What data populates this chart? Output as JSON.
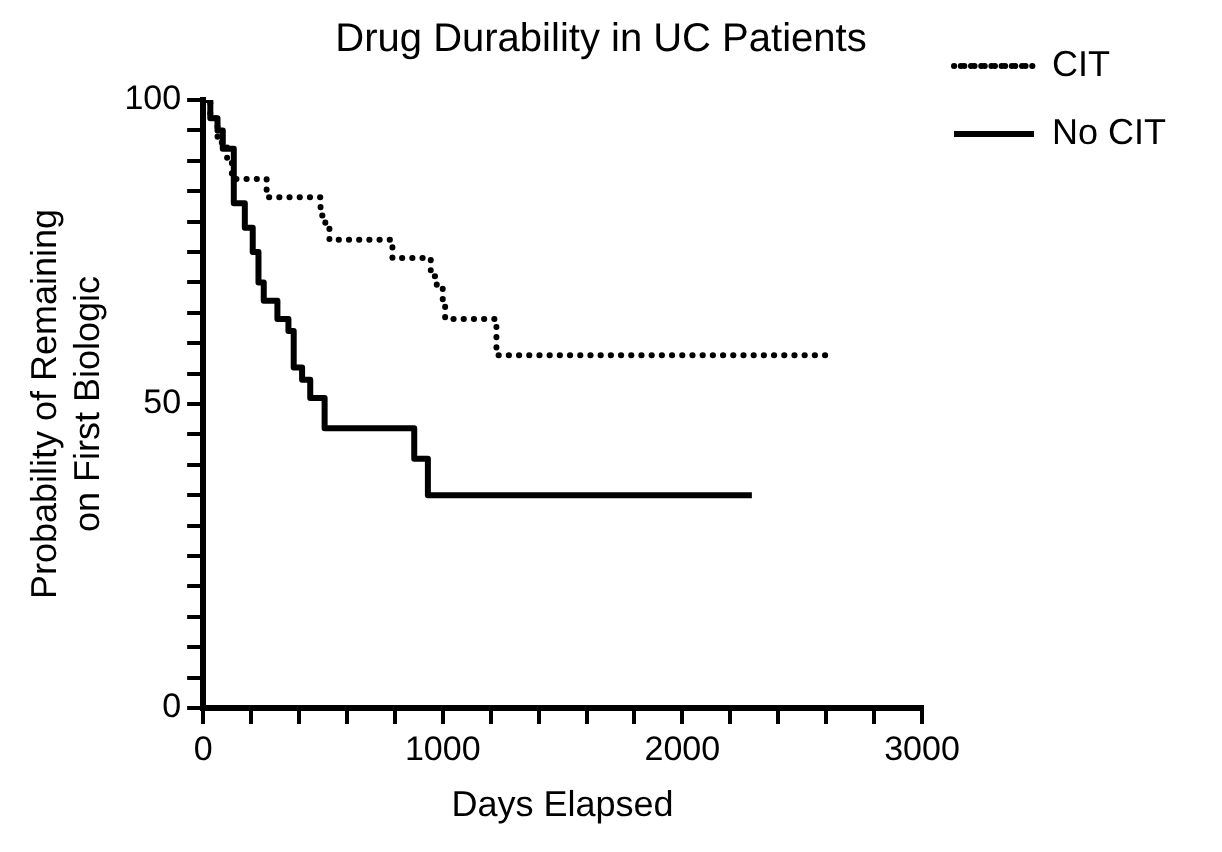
{
  "chart_data": {
    "type": "step",
    "title": "Drug Durability in UC Patients",
    "xlabel": "Days Elapsed",
    "ylabel": "Probability of Remaining\non First Biologic",
    "series": [
      {
        "name": "CIT",
        "color": "#000000",
        "line_style": "dotted",
        "x": [
          0,
          30,
          60,
          100,
          120,
          265,
          490,
          510,
          527,
          790,
          950,
          975,
          1000,
          1010,
          1224,
          2620
        ],
        "values": [
          100,
          97,
          93,
          90,
          87,
          84,
          81,
          79,
          77,
          74,
          71,
          69,
          66,
          64,
          58,
          58
        ]
      },
      {
        "name": "No CIT",
        "color": "#000000",
        "line_style": "solid",
        "x": [
          0,
          30,
          60,
          82,
          128,
          174,
          207,
          231,
          253,
          310,
          356,
          378,
          413,
          447,
          507,
          881,
          938,
          2290
        ],
        "values": [
          100,
          97,
          95,
          92,
          83,
          79,
          75,
          70,
          67,
          64,
          62,
          56,
          54,
          51,
          46,
          41,
          35,
          35
        ]
      }
    ],
    "xlim": [
      0,
      3000
    ],
    "xticks": [
      0,
      {
        "value": 200,
        "label": null
      },
      {
        "value": 400,
        "label": null
      },
      {
        "value": 600,
        "label": null
      },
      {
        "value": 800,
        "label": null
      },
      1000,
      {
        "value": 1200,
        "label": null
      },
      {
        "value": 1400,
        "label": null
      },
      {
        "value": 1600,
        "label": null
      },
      {
        "value": 1800,
        "label": null
      },
      2000,
      {
        "value": 2200,
        "label": null
      },
      {
        "value": 2400,
        "label": null
      },
      {
        "value": 2600,
        "label": null
      },
      {
        "value": 2800,
        "label": null
      },
      3000
    ],
    "ylim": [
      0,
      100
    ],
    "yticks": [
      0,
      {
        "value": 5,
        "label": null
      },
      {
        "value": 10,
        "label": null
      },
      {
        "value": 15,
        "label": null
      },
      {
        "value": 20,
        "label": null
      },
      {
        "value": 25,
        "label": null
      },
      {
        "value": 30,
        "label": null
      },
      {
        "value": 35,
        "label": null
      },
      {
        "value": 40,
        "label": null
      },
      {
        "value": 45,
        "label": null
      },
      50,
      {
        "value": 55,
        "label": null
      },
      {
        "value": 60,
        "label": null
      },
      {
        "value": 65,
        "label": null
      },
      {
        "value": 70,
        "label": null
      },
      {
        "value": 75,
        "label": null
      },
      {
        "value": 80,
        "label": null
      },
      {
        "value": 85,
        "label": null
      },
      {
        "value": 90,
        "label": null
      },
      {
        "value": 95,
        "label": null
      },
      100
    ],
    "grid": false,
    "legend": "top right",
    "marker": "none"
  }
}
